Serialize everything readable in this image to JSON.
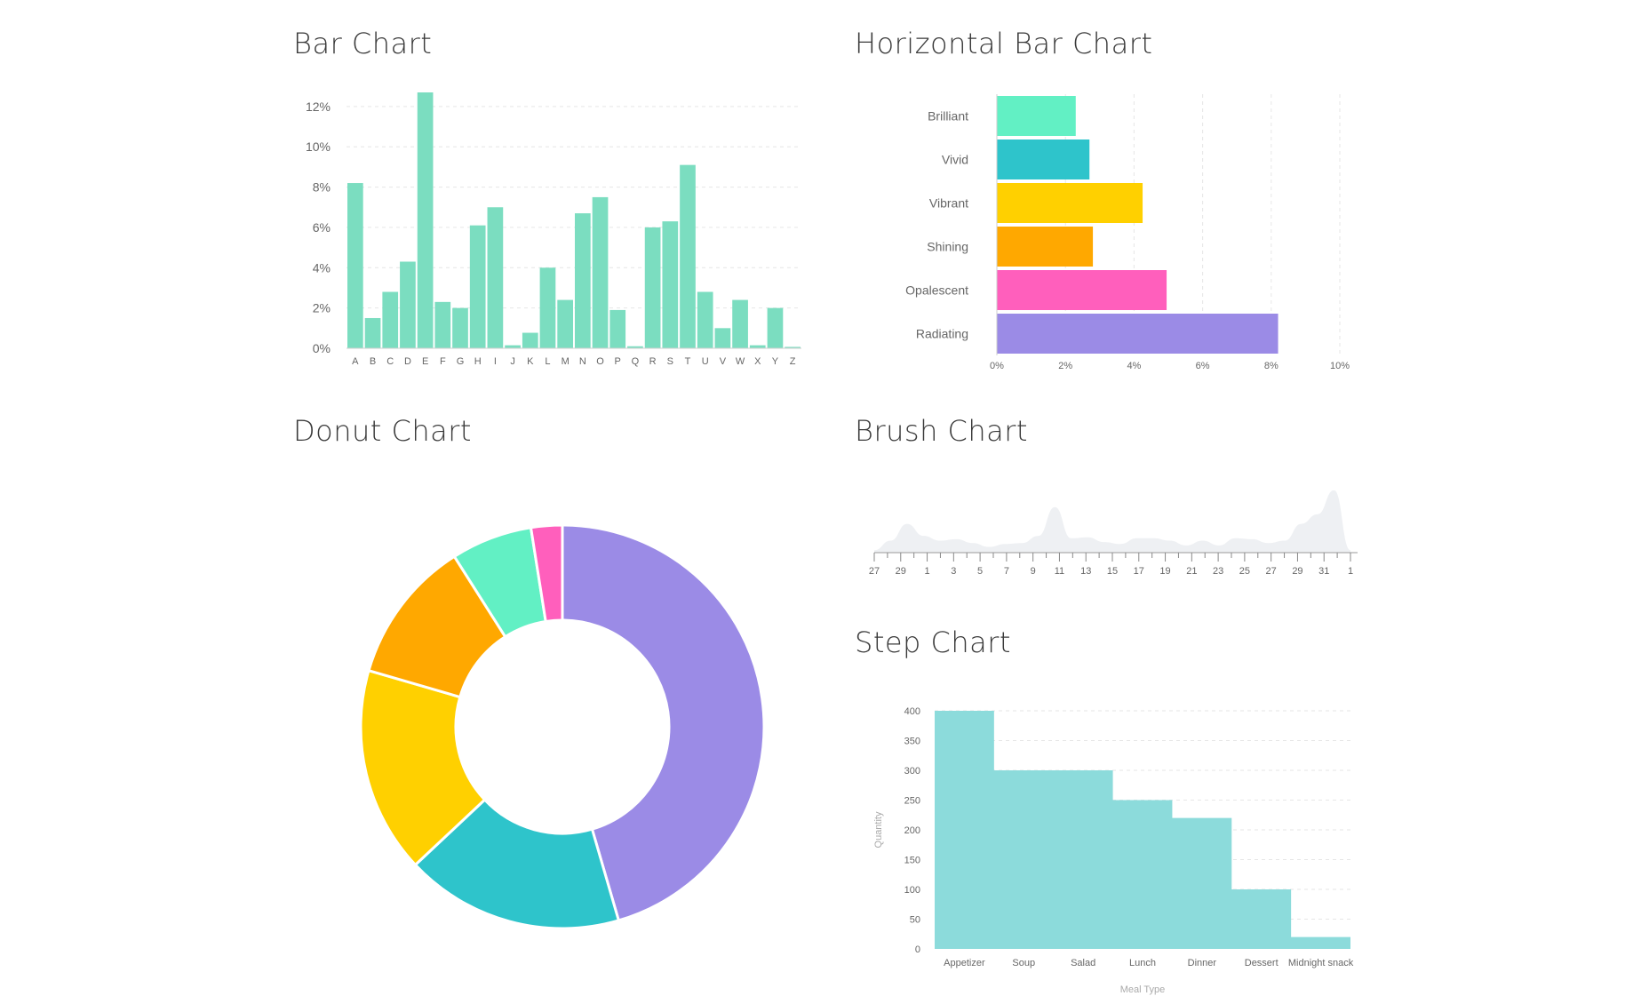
{
  "colors": {
    "teal": "#7bddc0",
    "grid": "#e6e6e6",
    "brush_fill": "#eef0f3",
    "step_fill": "#8cdbdb",
    "brilliant": "#62f0c4",
    "vivid": "#2ec4cb",
    "vibrant": "#ffd000",
    "shining": "#ffa800",
    "opalescent": "#ff5fbc",
    "radiating": "#9b8be6"
  },
  "bar_chart": {
    "title": "Bar Chart",
    "chart_data": {
      "type": "bar",
      "categories": [
        "A",
        "B",
        "C",
        "D",
        "E",
        "F",
        "G",
        "H",
        "I",
        "J",
        "K",
        "L",
        "M",
        "N",
        "O",
        "P",
        "Q",
        "R",
        "S",
        "T",
        "U",
        "V",
        "W",
        "X",
        "Y",
        "Z"
      ],
      "values": [
        8.2,
        1.5,
        2.8,
        4.3,
        12.7,
        2.3,
        2.0,
        6.1,
        7.0,
        0.15,
        0.77,
        4.0,
        2.4,
        6.7,
        7.5,
        1.9,
        0.1,
        6.0,
        6.3,
        9.1,
        2.8,
        1.0,
        2.4,
        0.15,
        2.0,
        0.07
      ],
      "y_ticks": [
        "0%",
        "2%",
        "4%",
        "6%",
        "8%",
        "10%",
        "12%"
      ],
      "ylim": [
        0,
        12.7
      ],
      "grid": "horizontal dashed"
    }
  },
  "horizontal_bar_chart": {
    "title": "Horizontal Bar Chart",
    "chart_data": {
      "type": "bar",
      "orientation": "horizontal",
      "categories": [
        "Brilliant",
        "Vivid",
        "Vibrant",
        "Shining",
        "Opalescent",
        "Radiating"
      ],
      "values": [
        2.3,
        2.7,
        4.25,
        2.8,
        4.95,
        8.2
      ],
      "x_ticks": [
        "0%",
        "2%",
        "4%",
        "6%",
        "8%",
        "10%"
      ],
      "xlim": [
        0,
        10
      ],
      "grid": "vertical dashed"
    }
  },
  "donut_chart": {
    "title": "Donut Chart",
    "chart_data": {
      "type": "pie",
      "variant": "donut",
      "slices": [
        {
          "color": "#9b8be6",
          "value": 45.5
        },
        {
          "color": "#2ec4cb",
          "value": 17.5
        },
        {
          "color": "#ffd000",
          "value": 16.5
        },
        {
          "color": "#ffa800",
          "value": 11.5
        },
        {
          "color": "#62f0c4",
          "value": 6.5
        },
        {
          "color": "#ff5fbc",
          "value": 2.5
        }
      ]
    }
  },
  "brush_chart": {
    "title": "Brush Chart",
    "chart_data": {
      "type": "area",
      "x_ticks": [
        "27",
        "29",
        "1",
        "3",
        "5",
        "7",
        "9",
        "11",
        "13",
        "15",
        "17",
        "19",
        "21",
        "23",
        "25",
        "27",
        "29",
        "31",
        "1"
      ],
      "values": [
        0.05,
        0.25,
        0.6,
        0.35,
        0.25,
        0.28,
        0.2,
        0.12,
        0.18,
        0.2,
        0.35,
        0.95,
        0.3,
        0.32,
        0.22,
        0.18,
        0.3,
        0.3,
        0.25,
        0.15,
        0.25,
        0.15,
        0.3,
        0.28,
        0.2,
        0.25,
        0.6,
        0.8,
        1.3,
        0.05
      ]
    }
  },
  "step_chart": {
    "title": "Step Chart",
    "chart_data": {
      "type": "area",
      "variant": "step",
      "categories": [
        "Appetizer",
        "Soup",
        "Salad",
        "Lunch",
        "Dinner",
        "Dessert",
        "Midnight snack"
      ],
      "values": [
        400,
        300,
        300,
        250,
        220,
        100,
        20
      ],
      "y_ticks": [
        "0",
        "50",
        "100",
        "150",
        "200",
        "250",
        "300",
        "350",
        "400"
      ],
      "ylim": [
        0,
        400
      ],
      "xlabel": "Meal Type",
      "ylabel": "Quantity"
    }
  }
}
